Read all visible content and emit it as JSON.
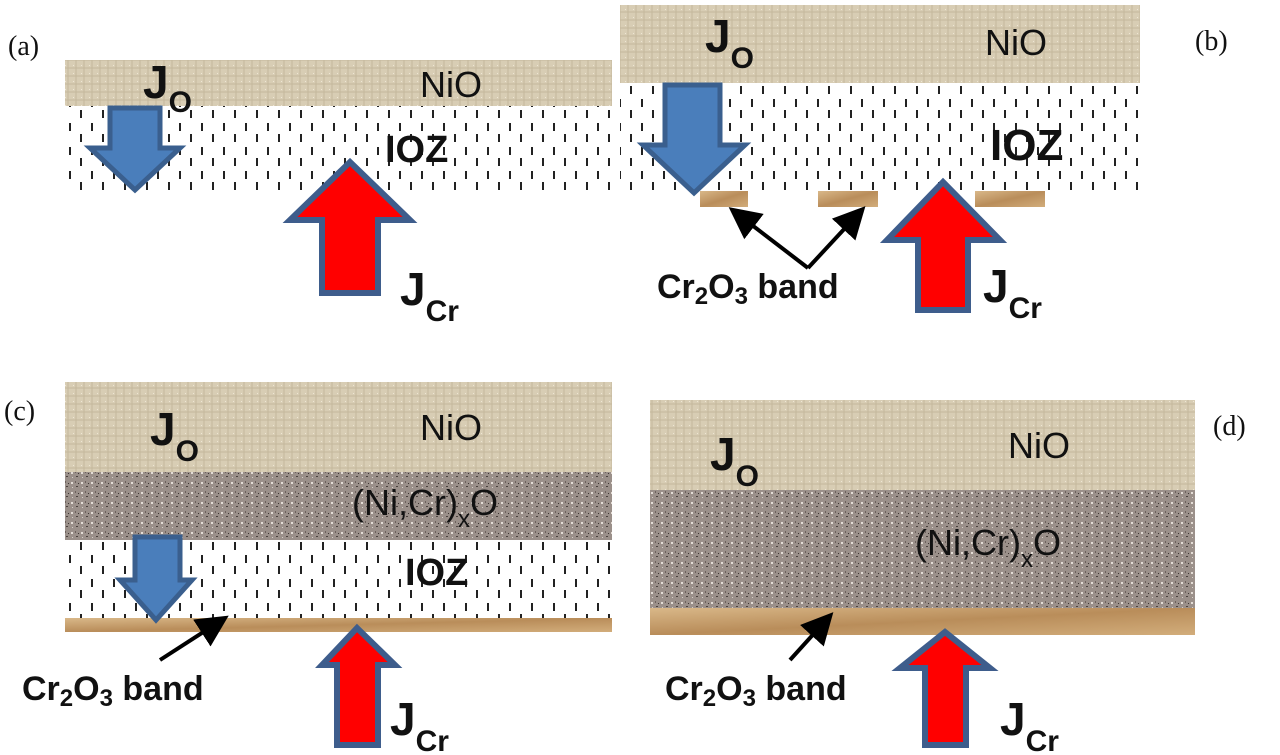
{
  "colors": {
    "oxygen_flux_arrow": "#4a7ebb",
    "chromium_flux_arrow": "#ff0000",
    "nio_layer": "#d8cdb4",
    "mixed_oxide_layer": "#9b908a",
    "cr2o3_band": "#c9a274"
  },
  "panels": [
    {
      "label": "(a)",
      "nio": "NiO",
      "ioz": "IOZ"
    },
    {
      "label": "(b)",
      "nio": "NiO",
      "ioz": "IOZ"
    },
    {
      "label": "(c)",
      "nio": "NiO",
      "ioz": "IOZ"
    },
    {
      "label": "(d)",
      "nio": "NiO"
    }
  ],
  "flux": {
    "j": "J",
    "oxygen_sub": "O",
    "chromium_sub": "Cr"
  },
  "mixed_oxide": {
    "main": "(Ni,Cr)",
    "sub": "x",
    "tail": "O"
  },
  "band_label": {
    "cr": "Cr",
    "two": "2",
    "o": "O",
    "three": "3",
    "rest": " band"
  }
}
